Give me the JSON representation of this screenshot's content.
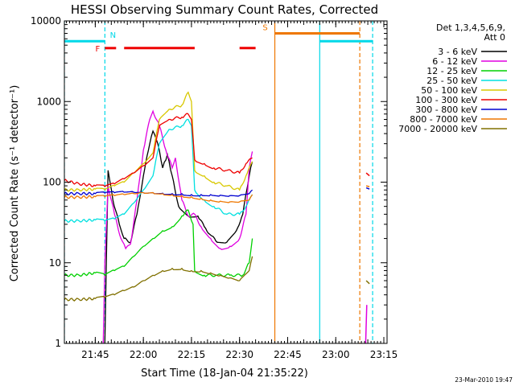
{
  "chart_data": {
    "type": "line",
    "title": "HESSI Observing Summary Count Rates, Corrected",
    "xlabel": "Start Time (18-Jan-04 21:35:22)",
    "ylabel": "Corrected Count Rate (s⁻¹ detector⁻¹)",
    "date_stamp": "23-Mar-2010 19:47",
    "x_unit": "UT",
    "xlim": [
      "21:35:22",
      "23:16:00"
    ],
    "yscale": "log",
    "ylim": [
      1,
      10000
    ],
    "x_ticks": [
      "21:45",
      "22:00",
      "22:15",
      "22:30",
      "22:45",
      "23:00",
      "23:15"
    ],
    "y_ticks": [
      "1",
      "10",
      "100",
      "1000",
      "10000"
    ],
    "legend": {
      "placement": "right",
      "header": [
        "Det 1,3,4,5,6,9,",
        "Att 0"
      ],
      "entries": [
        {
          "label": "3 - 6 keV",
          "color": "#000000"
        },
        {
          "label": "6 - 12 keV",
          "color": "#e000e0"
        },
        {
          "label": "12 - 25 keV",
          "color": "#00d000"
        },
        {
          "label": "25 - 50 keV",
          "color": "#00e0e0"
        },
        {
          "label": "50 - 100 keV",
          "color": "#d8c800"
        },
        {
          "label": "100 - 300 keV",
          "color": "#ee0000"
        },
        {
          "label": "300 - 800 keV",
          "color": "#0000d0"
        },
        {
          "label": "800 - 7000 keV",
          "color": "#ee7700"
        },
        {
          "label": "7000 - 20000 keV",
          "color": "#807000"
        }
      ]
    },
    "series": [
      {
        "name": "3 - 6 keV",
        "color": "#000000",
        "points": [
          [
            "21:48:00",
            1
          ],
          [
            "21:49:00",
            140
          ],
          [
            "21:50:30",
            60
          ],
          [
            "21:52:30",
            30
          ],
          [
            "21:54:00",
            20
          ],
          [
            "21:56:00",
            18
          ],
          [
            "21:58:00",
            40
          ],
          [
            "22:00:00",
            120
          ],
          [
            "22:02:00",
            300
          ],
          [
            "22:03:00",
            430
          ],
          [
            "22:04:30",
            300
          ],
          [
            "22:06:00",
            150
          ],
          [
            "22:07:30",
            220
          ],
          [
            "22:09:00",
            120
          ],
          [
            "22:11:00",
            50
          ],
          [
            "22:14:00",
            38
          ],
          [
            "22:17:00",
            38
          ],
          [
            "22:19:00",
            28
          ],
          [
            "22:21:00",
            22
          ],
          [
            "22:23:00",
            18
          ],
          [
            "22:26:00",
            18
          ],
          [
            "22:29:00",
            25
          ],
          [
            "22:31:00",
            40
          ],
          [
            "22:33:00",
            120
          ],
          [
            "22:34:00",
            180
          ]
        ]
      },
      {
        "name": "6 - 12 keV",
        "color": "#e000e0",
        "points": [
          [
            "21:47:30",
            1
          ],
          [
            "21:48:00",
            10
          ],
          [
            "21:49:00",
            90
          ],
          [
            "21:51:00",
            40
          ],
          [
            "21:53:00",
            20
          ],
          [
            "21:54:30",
            15
          ],
          [
            "21:56:00",
            17
          ],
          [
            "21:58:00",
            60
          ],
          [
            "22:00:00",
            250
          ],
          [
            "22:02:00",
            600
          ],
          [
            "22:03:00",
            760
          ],
          [
            "22:05:00",
            500
          ],
          [
            "22:07:00",
            250
          ],
          [
            "22:09:00",
            150
          ],
          [
            "22:10:00",
            200
          ],
          [
            "22:12:00",
            60
          ],
          [
            "22:14:00",
            38
          ],
          [
            "22:16:00",
            40
          ],
          [
            "22:18:00",
            28
          ],
          [
            "22:21:00",
            20
          ],
          [
            "22:24:00",
            15
          ],
          [
            "22:27:00",
            16
          ],
          [
            "22:30:00",
            20
          ],
          [
            "22:32:00",
            40
          ],
          [
            "22:33:00",
            150
          ],
          [
            "22:34:00",
            240
          ]
        ]
      },
      {
        "name": "12 - 25 keV",
        "color": "#00d000",
        "points": [
          [
            "21:35:22",
            7
          ],
          [
            "21:40:00",
            7
          ],
          [
            "21:45:00",
            7.5
          ],
          [
            "21:48:00",
            7
          ],
          [
            "21:51:00",
            8
          ],
          [
            "21:54:00",
            9
          ],
          [
            "21:57:00",
            12
          ],
          [
            "22:00:00",
            16
          ],
          [
            "22:03:00",
            20
          ],
          [
            "22:06:00",
            25
          ],
          [
            "22:09:00",
            28
          ],
          [
            "22:12:00",
            38
          ],
          [
            "22:14:00",
            45
          ],
          [
            "22:15:30",
            30
          ],
          [
            "22:16:00",
            8
          ],
          [
            "22:19:00",
            7
          ],
          [
            "22:23:00",
            7
          ],
          [
            "22:27:00",
            7
          ],
          [
            "22:31:00",
            7
          ],
          [
            "22:33:00",
            10
          ],
          [
            "22:34:00",
            20
          ]
        ]
      },
      {
        "name": "25 - 50 keV",
        "color": "#00e0e0",
        "points": [
          [
            "21:35:22",
            33
          ],
          [
            "21:40:00",
            33
          ],
          [
            "21:45:00",
            34
          ],
          [
            "21:48:00",
            33
          ],
          [
            "21:51:00",
            35
          ],
          [
            "21:54:00",
            40
          ],
          [
            "21:57:00",
            55
          ],
          [
            "22:00:00",
            80
          ],
          [
            "22:03:00",
            120
          ],
          [
            "22:05:00",
            300
          ],
          [
            "22:08:00",
            450
          ],
          [
            "22:12:00",
            500
          ],
          [
            "22:14:00",
            600
          ],
          [
            "22:15:00",
            500
          ],
          [
            "22:16:00",
            80
          ],
          [
            "22:19:00",
            60
          ],
          [
            "22:22:00",
            50
          ],
          [
            "22:26:00",
            40
          ],
          [
            "22:30:00",
            40
          ],
          [
            "22:32:00",
            50
          ],
          [
            "22:34:00",
            70
          ]
        ]
      },
      {
        "name": "50 - 100 keV",
        "color": "#d8c800",
        "points": [
          [
            "21:35:22",
            80
          ],
          [
            "21:40:00",
            80
          ],
          [
            "21:45:00",
            82
          ],
          [
            "21:48:00",
            80
          ],
          [
            "21:51:00",
            90
          ],
          [
            "21:54:00",
            100
          ],
          [
            "21:57:00",
            130
          ],
          [
            "22:00:00",
            170
          ],
          [
            "22:03:00",
            230
          ],
          [
            "22:05:00",
            600
          ],
          [
            "22:08:00",
            800
          ],
          [
            "22:12:00",
            900
          ],
          [
            "22:14:00",
            1300
          ],
          [
            "22:15:00",
            1000
          ],
          [
            "22:16:00",
            140
          ],
          [
            "22:19:00",
            120
          ],
          [
            "22:22:00",
            100
          ],
          [
            "22:26:00",
            90
          ],
          [
            "22:30:00",
            80
          ],
          [
            "22:32:00",
            120
          ],
          [
            "22:34:00",
            180
          ]
        ]
      },
      {
        "name": "100 - 300 keV",
        "color": "#ee0000",
        "points": [
          [
            "21:35:22",
            105
          ],
          [
            "21:40:00",
            95
          ],
          [
            "21:45:00",
            90
          ],
          [
            "21:48:00",
            88
          ],
          [
            "21:51:00",
            95
          ],
          [
            "21:54:00",
            110
          ],
          [
            "21:57:00",
            130
          ],
          [
            "22:00:00",
            160
          ],
          [
            "22:03:00",
            200
          ],
          [
            "22:05:00",
            500
          ],
          [
            "22:08:00",
            600
          ],
          [
            "22:12:00",
            640
          ],
          [
            "22:14:00",
            700
          ],
          [
            "22:15:00",
            600
          ],
          [
            "22:16:00",
            190
          ],
          [
            "22:19:00",
            170
          ],
          [
            "22:22:00",
            150
          ],
          [
            "22:26:00",
            140
          ],
          [
            "22:30:00",
            130
          ],
          [
            "22:32:00",
            170
          ],
          [
            "22:34:00",
            200
          ]
        ]
      },
      {
        "name": "300 - 800 keV",
        "color": "#0000d0",
        "points": [
          [
            "21:35:22",
            72
          ],
          [
            "21:40:00",
            72
          ],
          [
            "21:45:00",
            72
          ],
          [
            "21:48:00",
            73
          ],
          [
            "21:51:00",
            74
          ],
          [
            "21:54:00",
            75
          ],
          [
            "21:57:00",
            75
          ],
          [
            "22:00:00",
            74
          ],
          [
            "22:03:00",
            74
          ],
          [
            "22:06:00",
            73
          ],
          [
            "22:09:00",
            72
          ],
          [
            "22:12:00",
            72
          ],
          [
            "22:15:00",
            70
          ],
          [
            "22:18:00",
            70
          ],
          [
            "22:21:00",
            70
          ],
          [
            "22:24:00",
            69
          ],
          [
            "22:27:00",
            68
          ],
          [
            "22:30:00",
            68
          ],
          [
            "22:33:00",
            72
          ],
          [
            "22:34:00",
            80
          ]
        ]
      },
      {
        "name": "800 - 7000 keV",
        "color": "#ee7700",
        "points": [
          [
            "21:35:22",
            65
          ],
          [
            "21:40:00",
            65
          ],
          [
            "21:45:00",
            66
          ],
          [
            "21:48:00",
            66
          ],
          [
            "21:51:00",
            68
          ],
          [
            "21:54:00",
            70
          ],
          [
            "21:57:00",
            72
          ],
          [
            "22:00:00",
            74
          ],
          [
            "22:03:00",
            74
          ],
          [
            "22:06:00",
            72
          ],
          [
            "22:09:00",
            70
          ],
          [
            "22:12:00",
            68
          ],
          [
            "22:15:00",
            66
          ],
          [
            "22:18:00",
            63
          ],
          [
            "22:21:00",
            60
          ],
          [
            "22:24:00",
            58
          ],
          [
            "22:27:00",
            57
          ],
          [
            "22:30:00",
            57
          ],
          [
            "22:33:00",
            60
          ],
          [
            "22:34:00",
            70
          ]
        ]
      },
      {
        "name": "7000 - 20000 keV",
        "color": "#807000",
        "points": [
          [
            "21:35:22",
            3.5
          ],
          [
            "21:40:00",
            3.5
          ],
          [
            "21:45:00",
            3.6
          ],
          [
            "21:48:00",
            3.7
          ],
          [
            "21:51:00",
            4
          ],
          [
            "21:54:00",
            4.5
          ],
          [
            "21:57:00",
            5
          ],
          [
            "22:00:00",
            6
          ],
          [
            "22:03:00",
            7
          ],
          [
            "22:06:00",
            8
          ],
          [
            "22:09:00",
            8.5
          ],
          [
            "22:12:00",
            8.5
          ],
          [
            "22:15:00",
            8
          ],
          [
            "22:18:00",
            8
          ],
          [
            "22:21:00",
            7.5
          ],
          [
            "22:24:00",
            7
          ],
          [
            "22:27:00",
            6.5
          ],
          [
            "22:30:00",
            6
          ],
          [
            "22:33:00",
            8
          ],
          [
            "22:34:00",
            12
          ]
        ]
      }
    ],
    "tail_segments": [
      {
        "color": "#ee0000",
        "points": [
          [
            "23:09:30",
            130
          ],
          [
            "23:10:30",
            120
          ]
        ]
      },
      {
        "color": "#0000d0",
        "points": [
          [
            "23:09:30",
            85
          ],
          [
            "23:10:30",
            82
          ]
        ]
      },
      {
        "color": "#ee7700",
        "points": [
          [
            "23:09:30",
            90
          ],
          [
            "23:10:30",
            88
          ]
        ]
      },
      {
        "color": "#807000",
        "points": [
          [
            "23:09:30",
            6
          ],
          [
            "23:10:30",
            5.5
          ]
        ]
      },
      {
        "color": "#e000e0",
        "points": [
          [
            "23:09:20",
            1
          ],
          [
            "23:09:40",
            3
          ]
        ]
      }
    ],
    "attenuator_flags": [
      {
        "label": "N",
        "color": "#00d8e8",
        "start": "21:35:22",
        "end": "21:48:00",
        "level": 5600
      },
      {
        "label": "",
        "color": "#00d8e8",
        "start": "22:55:00",
        "end": "23:11:30",
        "level": 5600
      },
      {
        "label": "S",
        "color": "#ee7700",
        "start": "22:41:00",
        "end": "23:07:30",
        "level": 7000
      }
    ],
    "flare_flags": [
      {
        "label": "F",
        "color": "#ee0000",
        "start": "21:48:00",
        "end": "21:51:30",
        "level": 4600
      },
      {
        "label": "",
        "color": "#ee0000",
        "start": "21:54:00",
        "end": "22:16:00",
        "level": 4600
      },
      {
        "label": "",
        "color": "#ee0000",
        "start": "22:30:00",
        "end": "22:35:00",
        "level": 4600
      }
    ],
    "marker_lines": [
      {
        "time": "21:35:22",
        "color": "#00d8e8",
        "style": "dashed"
      },
      {
        "time": "21:48:00",
        "color": "#00d8e8",
        "style": "dashed"
      },
      {
        "time": "22:41:00",
        "color": "#ee7700",
        "style": "solid"
      },
      {
        "time": "22:55:00",
        "color": "#00d8e8",
        "style": "solid"
      },
      {
        "time": "23:07:30",
        "color": "#ee7700",
        "style": "dashed"
      },
      {
        "time": "23:11:30",
        "color": "#00d8e8",
        "style": "dashed"
      }
    ]
  }
}
